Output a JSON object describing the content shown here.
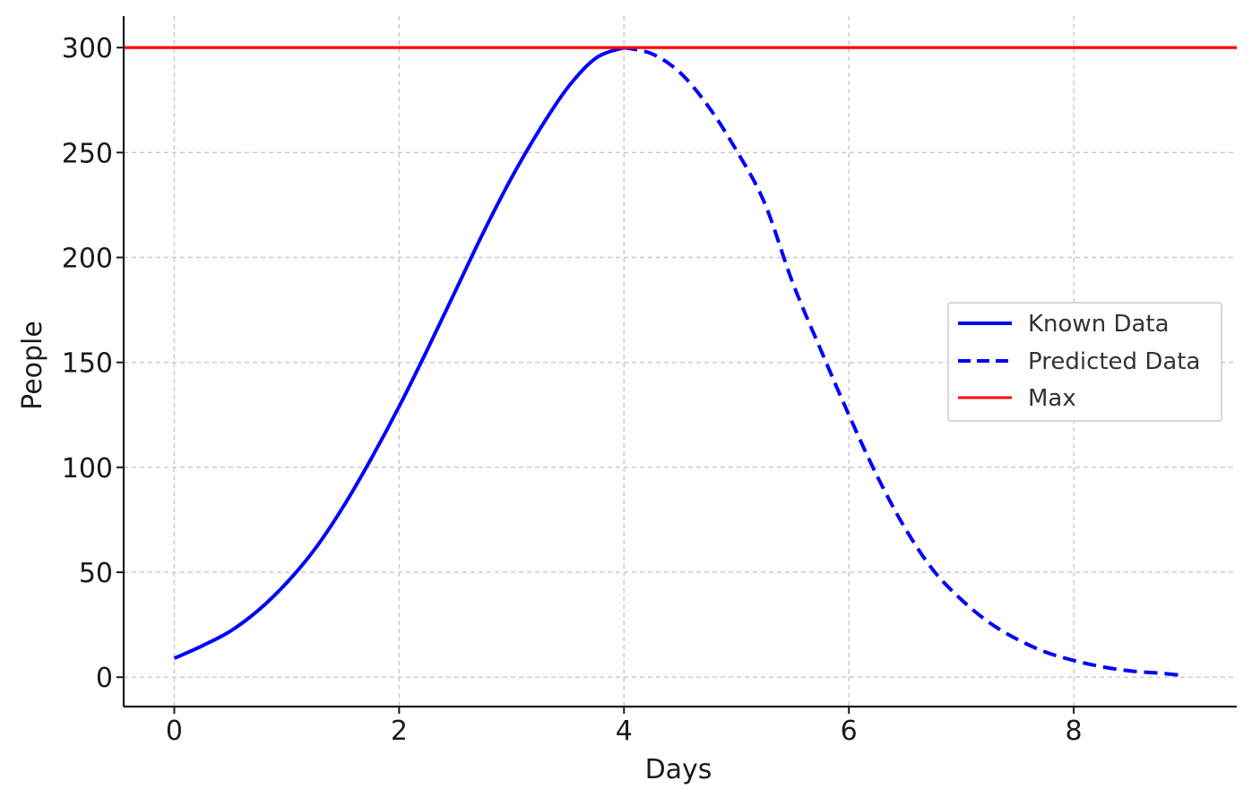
{
  "chart_data": {
    "type": "line",
    "title": "",
    "xlabel": "Days",
    "ylabel": "People",
    "xlim": [
      -0.45,
      9.45
    ],
    "ylim": [
      -14,
      315
    ],
    "xticks": [
      0,
      2,
      4,
      6,
      8
    ],
    "xtick_labels": [
      "0",
      "2",
      "4",
      "6",
      "8"
    ],
    "yticks": [
      0,
      50,
      100,
      150,
      200,
      250,
      300
    ],
    "ytick_labels": [
      "0",
      "50",
      "100",
      "150",
      "200",
      "250",
      "300"
    ],
    "grid": true,
    "legend_position": "center-right",
    "series": [
      {
        "name": "Known Data",
        "style": "solid",
        "color": "#0000ff",
        "x": [
          0,
          0.25,
          0.5,
          0.75,
          1,
          1.25,
          1.5,
          1.75,
          2,
          2.25,
          2.5,
          2.75,
          3,
          3.25,
          3.5,
          3.75,
          4
        ],
        "y": [
          9,
          15,
          22,
          32,
          45,
          61,
          81,
          104,
          129,
          156,
          184,
          212,
          238,
          261,
          281,
          295,
          300
        ]
      },
      {
        "name": "Predicted Data",
        "style": "dashed",
        "color": "#0000ff",
        "x": [
          4,
          4.25,
          4.5,
          4.75,
          5,
          5.25,
          5.5,
          5.75,
          6,
          6.25,
          6.5,
          6.75,
          7,
          7.25,
          7.5,
          7.75,
          8,
          8.25,
          8.5,
          8.75,
          8.95
        ],
        "y": [
          300,
          297,
          288,
          272,
          251,
          226,
          188,
          156,
          125,
          96,
          71,
          51,
          37,
          26,
          18,
          12,
          8,
          5,
          3,
          2,
          1
        ]
      },
      {
        "name": "Max",
        "style": "solid",
        "color": "#ff0000",
        "type": "hline",
        "y": 300
      }
    ]
  }
}
